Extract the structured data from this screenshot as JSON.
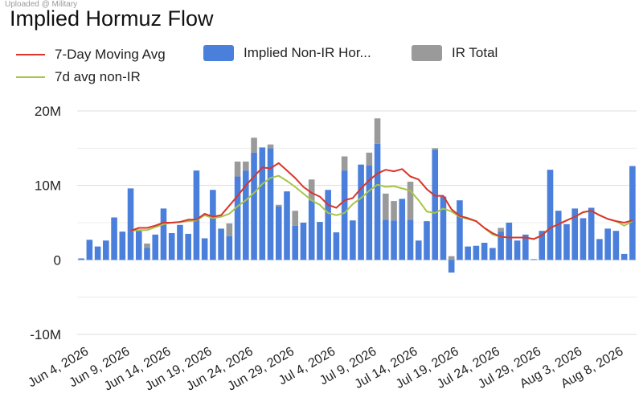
{
  "header": {
    "watermark": "Uploaded @ Military",
    "title": "Implied Hormuz Flow"
  },
  "legend": {
    "moving_avg": "7-Day Moving Avg",
    "non_ir": "Implied Non-IR Hor...",
    "ir_total": "IR Total",
    "avg_non_ir": "7d avg non-IR"
  },
  "colors": {
    "non_ir_bar": "#4a7fdb",
    "ir_bar": "#9a9a9a",
    "moving_avg": "#d9352b",
    "avg_non_ir": "#a8c44a",
    "grid": "#dcdcdc"
  },
  "chart_data": {
    "type": "bar",
    "title": "Implied Hormuz Flow",
    "ylim": [
      -10000000,
      20000000
    ],
    "y_ticks": [
      {
        "value": 20000000,
        "label": "20M"
      },
      {
        "value": 10000000,
        "label": "10M"
      },
      {
        "value": 0,
        "label": "0"
      },
      {
        "value": -10000000,
        "label": "-10M"
      }
    ],
    "x_tick_labels": [
      "Jun 4, 2026",
      "Jun 9, 2026",
      "Jun 14, 2026",
      "Jun 19, 2026",
      "Jun 24, 2026",
      "Jun 29, 2026",
      "Jul 4, 2026",
      "Jul 9, 2026",
      "Jul 14, 2026",
      "Jul 19, 2026",
      "Jul 24, 2026",
      "Jul 29, 2026",
      "Aug 3, 2026",
      "Aug 8, 2026"
    ],
    "x_tick_every": 5,
    "grid": true,
    "legend_position": "top",
    "series": [
      {
        "name": "Implied Non-IR Hor...",
        "kind": "bar",
        "values": [
          0.2,
          2.7,
          1.8,
          2.6,
          5.7,
          3.8,
          9.6,
          3.9,
          1.6,
          3.4,
          6.9,
          3.6,
          4.7,
          3.5,
          12.0,
          2.9,
          9.4,
          4.2,
          3.2,
          11.2,
          12.0,
          14.4,
          15.1,
          15.0,
          7.2,
          9.2,
          4.6,
          5.0,
          8.0,
          5.1,
          9.4,
          3.7,
          12.0,
          5.3,
          12.8,
          12.7,
          15.6,
          5.4,
          5.3,
          8.2,
          5.4,
          2.6,
          5.2,
          14.8,
          8.5,
          -1.7,
          8.0,
          1.8,
          1.9,
          2.3,
          1.6,
          3.8,
          5.0,
          2.6,
          3.4,
          0.1,
          3.9,
          12.1,
          6.6,
          4.8,
          6.9,
          5.6,
          7.0,
          2.8,
          4.2,
          3.9,
          0.8,
          12.6
        ]
      },
      {
        "name": "IR Total",
        "kind": "stacked-bar",
        "values": [
          0,
          0,
          0,
          0,
          0,
          0,
          0,
          0,
          0.6,
          0,
          0,
          0,
          0,
          0,
          0,
          0,
          0,
          0,
          1.7,
          2.0,
          1.2,
          2.0,
          0,
          0.5,
          0.2,
          0,
          2.0,
          0,
          2.8,
          0,
          0,
          0,
          1.9,
          0,
          0,
          1.7,
          3.4,
          3.5,
          2.6,
          0,
          5.1,
          0,
          0,
          0.2,
          0,
          0.5,
          0,
          0,
          0,
          0,
          0,
          0.5,
          0,
          0,
          0,
          0,
          0,
          0,
          0,
          0,
          0,
          0,
          0,
          0,
          0,
          0,
          0,
          0
        ]
      },
      {
        "name": "7-Day Moving Avg",
        "kind": "line",
        "start_index": 6,
        "values": [
          3.9,
          4.3,
          4.3,
          4.6,
          5.0,
          5.0,
          5.1,
          5.4,
          5.4,
          6.2,
          5.8,
          6.0,
          7.3,
          8.6,
          10.0,
          11.2,
          12.4,
          12.3,
          13.0,
          12.0,
          11.0,
          9.8,
          9.0,
          8.5,
          7.4,
          7.0,
          8.0,
          8.3,
          9.6,
          10.7,
          11.6,
          12.1,
          11.9,
          12.2,
          11.2,
          10.8,
          9.5,
          8.6,
          8.6,
          6.8,
          5.9,
          5.6,
          5.2,
          4.3,
          3.6,
          3.1,
          3.0,
          3.0,
          3.0,
          2.8,
          3.3,
          4.3,
          4.8,
          5.3,
          5.8,
          6.4,
          6.6,
          6.0,
          5.5,
          5.2,
          5.0,
          5.3
        ]
      },
      {
        "name": "7d avg non-IR",
        "kind": "line",
        "start_index": 6,
        "values": [
          3.9,
          4.0,
          4.0,
          4.4,
          4.8,
          5.0,
          5.1,
          5.2,
          5.3,
          6.0,
          5.6,
          5.8,
          6.2,
          7.2,
          8.0,
          9.0,
          10.2,
          11.0,
          11.3,
          10.6,
          9.8,
          8.9,
          8.0,
          7.4,
          6.3,
          6.0,
          6.3,
          7.5,
          8.3,
          9.3,
          10.1,
          9.8,
          9.9,
          9.6,
          9.3,
          8.0,
          6.5,
          6.3,
          6.9,
          6.5,
          5.8,
          5.5,
          5.2,
          4.3,
          3.4,
          3.1,
          3.0,
          3.0,
          3.0,
          2.8,
          3.3,
          4.3,
          4.8,
          5.3,
          5.8,
          6.4,
          6.6,
          6.0,
          5.5,
          5.2,
          4.6,
          5.2
        ]
      }
    ],
    "value_unit_multiplier": 1000000
  }
}
